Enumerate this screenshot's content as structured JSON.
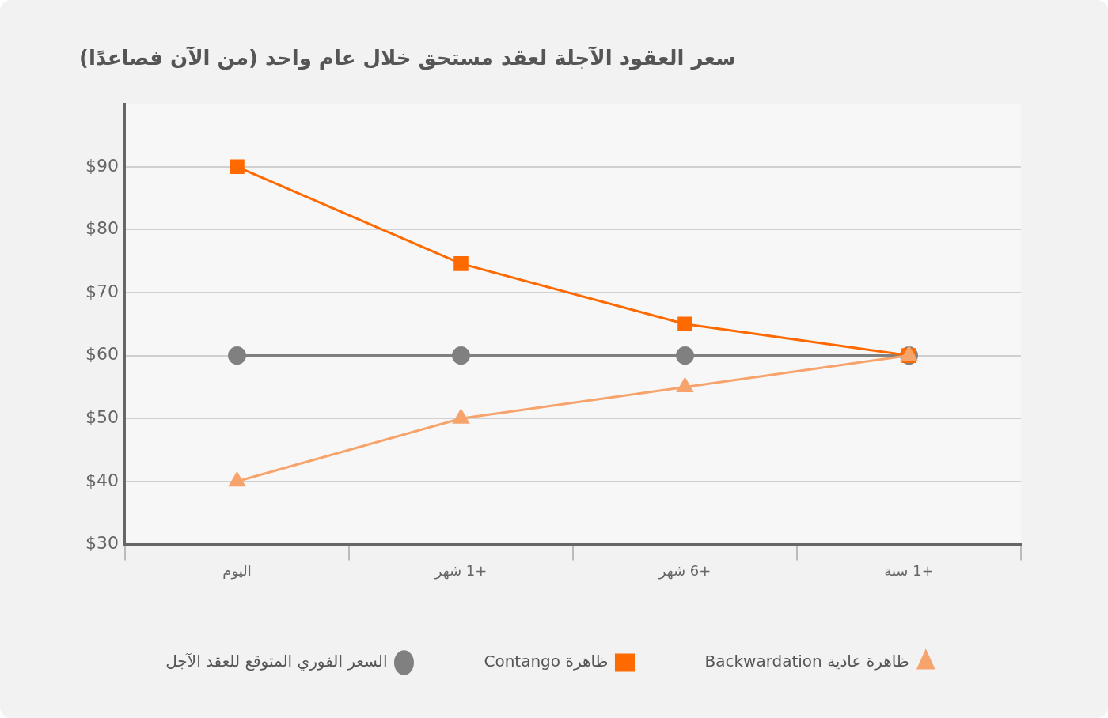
{
  "chart_data": {
    "type": "line",
    "title": "سعر العقود الآجلة لعقد مستحق خلال عام واحد (من الآن فصاعدًا)",
    "categories": [
      "اليوم",
      "+1 شهر",
      "+6 شهر",
      "+1 سنة"
    ],
    "series": [
      {
        "name": "ظاهرة عادية Backwardation",
        "color": "#f7a36c",
        "marker": "triangle",
        "values": [
          40,
          50,
          55,
          60
        ]
      },
      {
        "name": "ظاهرة Contango",
        "color": "#ff6a00",
        "marker": "square",
        "values": [
          90,
          74.6,
          65,
          60
        ]
      },
      {
        "name": "السعر الفوري المتوقع للعقد الآجل",
        "color": "#808080",
        "marker": "circle",
        "values": [
          60,
          60,
          60,
          60
        ]
      }
    ],
    "ylim": [
      30,
      100
    ],
    "yticks": [
      {
        "value": 30,
        "label": "$30"
      },
      {
        "value": 40,
        "label": "$40"
      },
      {
        "value": 50,
        "label": "$50"
      },
      {
        "value": 60,
        "label": "$60"
      },
      {
        "value": 70,
        "label": "$70"
      },
      {
        "value": 80,
        "label": "$80"
      },
      {
        "value": 90,
        "label": "$90"
      }
    ],
    "grid": true,
    "legend": "bottom"
  }
}
